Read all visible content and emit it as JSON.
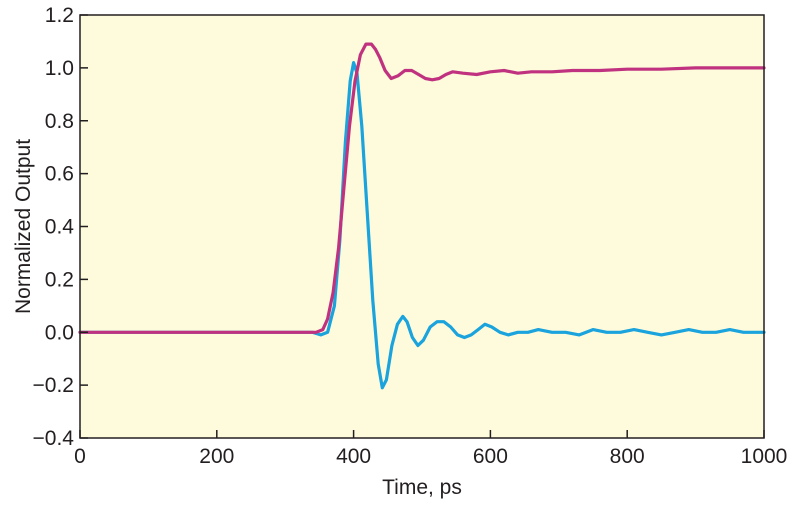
{
  "chart_data": {
    "type": "line",
    "title": "",
    "xlabel": "Time, ps",
    "ylabel": "Normalized Output",
    "xlim": [
      0,
      1000
    ],
    "ylim": [
      -0.4,
      1.2
    ],
    "x_ticks": [
      0,
      200,
      400,
      600,
      800,
      1000
    ],
    "x_tick_labels": [
      "0",
      "200",
      "400",
      "600",
      "800",
      "1000"
    ],
    "y_ticks": [
      -0.4,
      -0.2,
      0.0,
      0.2,
      0.4,
      0.6,
      0.8,
      1.0,
      1.2
    ],
    "y_tick_labels": [
      "−0.4",
      "−0.2",
      "0.0",
      "0.2",
      "0.4",
      "0.6",
      "0.8",
      "1.0",
      "1.2"
    ],
    "grid": false,
    "legend": "none",
    "plot_background": "#fdfbdc",
    "series": [
      {
        "color": "#1aa3dc",
        "x": [
          0,
          300,
          340,
          352,
          362,
          372,
          380,
          388,
          395,
          400,
          405,
          412,
          420,
          428,
          436,
          442,
          448,
          456,
          464,
          472,
          478,
          486,
          494,
          502,
          512,
          522,
          532,
          542,
          552,
          562,
          572,
          582,
          592,
          602,
          614,
          626,
          640,
          655,
          670,
          690,
          710,
          730,
          750,
          770,
          790,
          810,
          830,
          850,
          870,
          890,
          910,
          930,
          950,
          970,
          990,
          1000
        ],
        "y": [
          0.0,
          0.0,
          0.0,
          -0.01,
          0.0,
          0.1,
          0.35,
          0.72,
          0.95,
          1.02,
          0.98,
          0.78,
          0.45,
          0.12,
          -0.12,
          -0.21,
          -0.18,
          -0.05,
          0.03,
          0.06,
          0.04,
          -0.02,
          -0.05,
          -0.03,
          0.02,
          0.04,
          0.04,
          0.02,
          -0.01,
          -0.02,
          -0.01,
          0.01,
          0.03,
          0.02,
          0.0,
          -0.01,
          0.0,
          0.0,
          0.01,
          0.0,
          0.0,
          -0.01,
          0.01,
          0.0,
          0.0,
          0.01,
          0.0,
          -0.01,
          0.0,
          0.01,
          0.0,
          0.0,
          0.01,
          0.0,
          0.0,
          0.0
        ]
      },
      {
        "color": "#c0327f",
        "x": [
          0,
          320,
          345,
          355,
          362,
          370,
          378,
          386,
          394,
          402,
          410,
          418,
          426,
          432,
          438,
          446,
          455,
          465,
          475,
          485,
          495,
          505,
          515,
          525,
          535,
          545,
          560,
          580,
          600,
          620,
          640,
          660,
          690,
          720,
          760,
          800,
          850,
          900,
          950,
          1000
        ],
        "y": [
          0.0,
          0.0,
          0.0,
          0.01,
          0.05,
          0.15,
          0.32,
          0.55,
          0.78,
          0.95,
          1.05,
          1.09,
          1.09,
          1.07,
          1.04,
          0.99,
          0.96,
          0.97,
          0.99,
          0.99,
          0.975,
          0.96,
          0.955,
          0.96,
          0.975,
          0.985,
          0.98,
          0.975,
          0.985,
          0.99,
          0.98,
          0.985,
          0.985,
          0.99,
          0.99,
          0.995,
          0.995,
          1.0,
          1.0,
          1.0
        ]
      }
    ]
  }
}
